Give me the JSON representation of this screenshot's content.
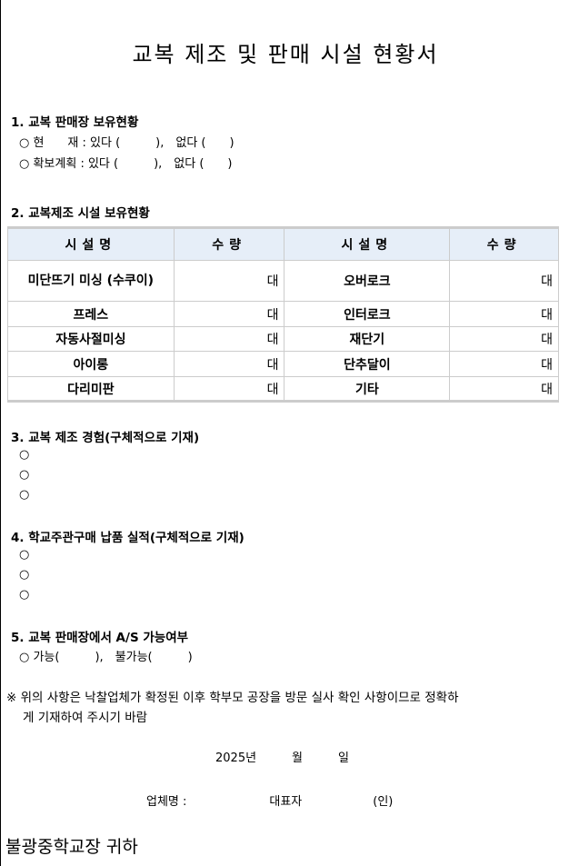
{
  "title": "교복 제조 및 판매 시설 현황서",
  "s1": {
    "heading": "1. 교복 판매장 보유현황",
    "lines": [
      "○ 현　　재 : 있다 (　　　),　없다 (　　)",
      "○ 확보계획 : 있다 (　　　),　없다 (　　)"
    ]
  },
  "s2": {
    "heading": "2. 교복제조 시설 보유현황",
    "headers": [
      "시설명",
      "수량",
      "시설명",
      "수량"
    ],
    "rows": [
      [
        "미단뜨기 미싱 (수쿠이)",
        "대",
        "오버로크",
        "대"
      ],
      [
        "프레스",
        "대",
        "인터로크",
        "대"
      ],
      [
        "자동사절미싱",
        "대",
        "재단기",
        "대"
      ],
      [
        "아이롱",
        "대",
        "단추달이",
        "대"
      ],
      [
        "다리미판",
        "대",
        "기타",
        "대"
      ]
    ]
  },
  "s3": {
    "heading": "3. 교복 제조 경험(구체적으로 기재)",
    "bullets": [
      "○",
      "○",
      "○"
    ]
  },
  "s4": {
    "heading": "4. 학교주관구매 납품 실적(구체적으로 기재)",
    "bullets": [
      "○",
      "○",
      "○"
    ]
  },
  "s5": {
    "heading": "5. 교복 판매장에서 A/S 가능여부",
    "line": "○ 가능(　　　),　불가능(　　　)"
  },
  "note1": "※ 위의 사항은 낙찰업체가 확정된 이후 학부모 공장을 방문 실사 확인 사항이므로 정확하",
  "note2": "게 기재하여 주시기 바람",
  "date": "2025년　　　월　　　일",
  "signature": "업체명 :　　　　　　　대표자　　　　　　(인)",
  "recipient": "불광중학교장 귀하"
}
